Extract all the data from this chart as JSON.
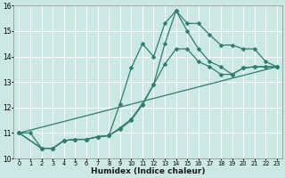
{
  "xlabel": "Humidex (Indice chaleur)",
  "bg_color": "#cce8e4",
  "grid_color": "#ffffff",
  "line_color": "#2e7d6e",
  "xlim": [
    -0.5,
    23.5
  ],
  "ylim": [
    10,
    16
  ],
  "xticks": [
    0,
    1,
    2,
    3,
    4,
    5,
    6,
    7,
    8,
    9,
    10,
    11,
    12,
    13,
    14,
    15,
    16,
    17,
    18,
    19,
    20,
    21,
    22,
    23
  ],
  "yticks": [
    10,
    11,
    12,
    13,
    14,
    15,
    16
  ],
  "line1_x": [
    0,
    1,
    2,
    3,
    4,
    5,
    6,
    7,
    8,
    9,
    10,
    11,
    12,
    13,
    14,
    15,
    16,
    17,
    18,
    19,
    20,
    21,
    22,
    23
  ],
  "line1_y": [
    11.0,
    11.0,
    10.4,
    10.4,
    10.7,
    10.75,
    10.75,
    10.85,
    10.9,
    11.15,
    11.5,
    12.1,
    12.9,
    14.5,
    15.8,
    15.3,
    15.3,
    14.85,
    14.45,
    14.45,
    14.3,
    14.3,
    13.8,
    13.6
  ],
  "line2_x": [
    0,
    2,
    3,
    4,
    5,
    6,
    7,
    8,
    9,
    10,
    11,
    12,
    13,
    14,
    15,
    16,
    17,
    18,
    19,
    20,
    21,
    22,
    23
  ],
  "line2_y": [
    11.0,
    10.4,
    10.4,
    10.7,
    10.75,
    10.75,
    10.85,
    10.9,
    12.15,
    13.55,
    14.5,
    14.0,
    15.3,
    15.8,
    15.0,
    14.3,
    13.8,
    13.6,
    13.3,
    13.55,
    13.6,
    13.6,
    13.6
  ],
  "line3_x": [
    0,
    2,
    3,
    4,
    5,
    6,
    7,
    8,
    9,
    10,
    11,
    12,
    13,
    14,
    15,
    16,
    17,
    18,
    19,
    20,
    21,
    22,
    23
  ],
  "line3_y": [
    11.0,
    10.4,
    10.4,
    10.7,
    10.75,
    10.75,
    10.85,
    10.9,
    11.2,
    11.55,
    12.15,
    12.9,
    13.7,
    14.3,
    14.3,
    13.8,
    13.6,
    13.3,
    13.3,
    13.55,
    13.6,
    13.6,
    13.6
  ],
  "line4_x": [
    0,
    23
  ],
  "line4_y": [
    11.0,
    13.6
  ]
}
